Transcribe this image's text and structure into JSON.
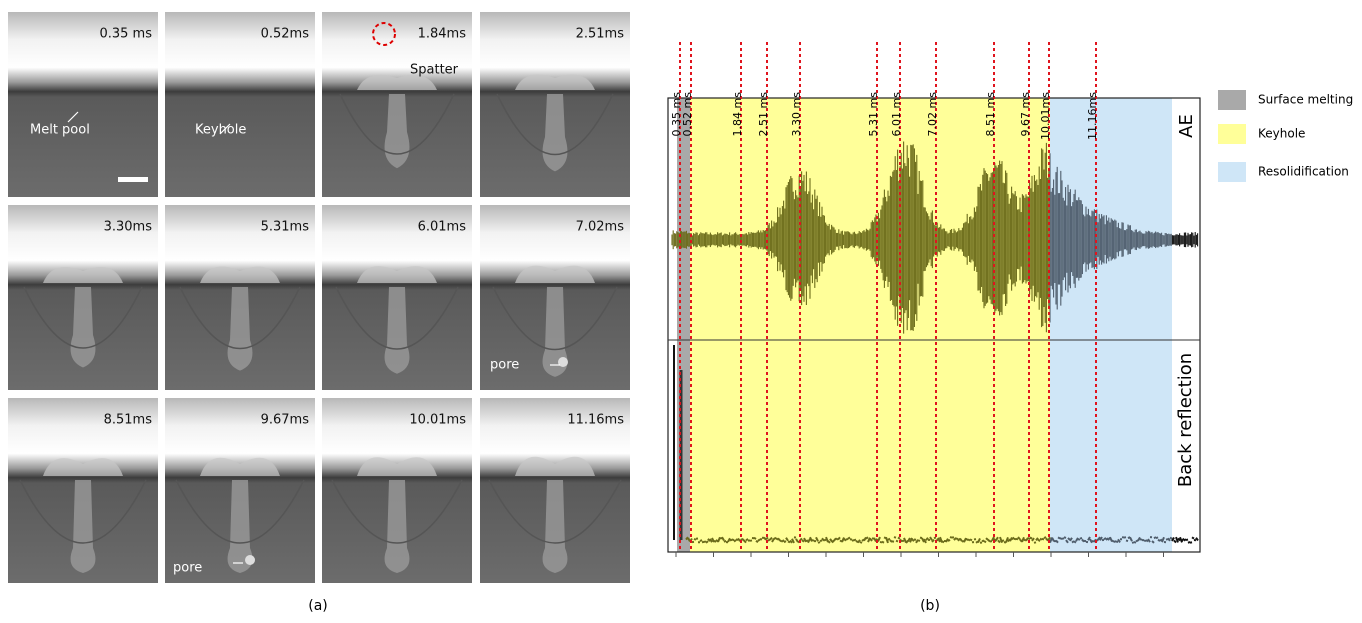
{
  "panel_a": {
    "frames": [
      {
        "time": "0.35 ms",
        "annotation": "Melt pool"
      },
      {
        "time": "0.52ms",
        "annotation": "Keyhole"
      },
      {
        "time": "1.84ms",
        "annotation": "Spatter"
      },
      {
        "time": "2.51ms"
      },
      {
        "time": "3.30ms"
      },
      {
        "time": "5.31ms"
      },
      {
        "time": "6.01ms"
      },
      {
        "time": "7.02ms",
        "annotation": "pore"
      },
      {
        "time": "8.51ms"
      },
      {
        "time": "9.67ms",
        "annotation": "pore"
      },
      {
        "time": "10.01ms"
      },
      {
        "time": "11.16ms"
      }
    ],
    "caption": "(a)"
  },
  "panel_b": {
    "markers": [
      "0.35 ms",
      "0.52 ms",
      "1.84 ms",
      "2.51 ms",
      "3.30 ms",
      "5.31 ms",
      "6.01 ms",
      "7.02 ms",
      "8.51 ms",
      "9.67 ms",
      "10.01ms",
      "11.16ms"
    ],
    "legend": [
      "Surface melting",
      "Keyhole",
      "Resolidification"
    ],
    "signal_labels": [
      "AE",
      "Back reflection"
    ],
    "caption": "(b)"
  }
}
